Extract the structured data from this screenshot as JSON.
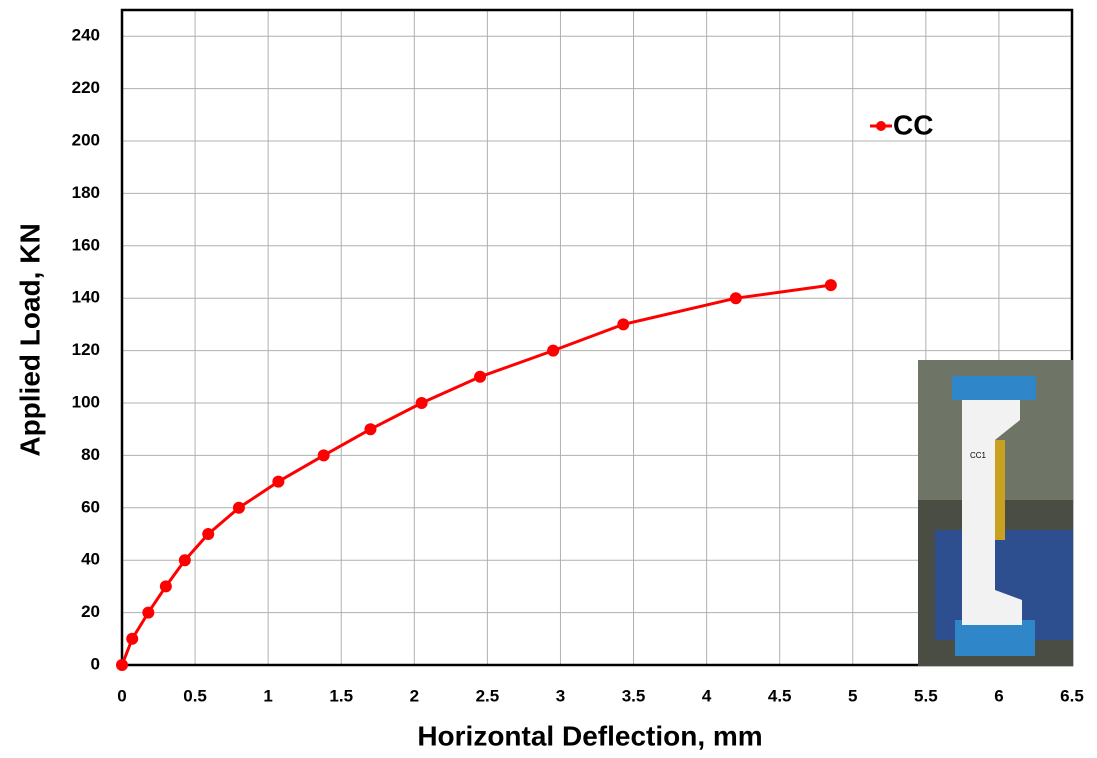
{
  "chart_data": {
    "type": "line",
    "x_label": "Horizontal Deflection, mm",
    "y_label": "Applied Load, KN",
    "x": [
      0,
      0.07,
      0.18,
      0.3,
      0.43,
      0.59,
      0.8,
      1.07,
      1.38,
      1.7,
      2.05,
      2.45,
      2.95,
      3.43,
      4.2,
      4.85
    ],
    "series": [
      {
        "name": "CC",
        "color": "#ff0000",
        "values": [
          0,
          10,
          20,
          30,
          40,
          50,
          60,
          70,
          80,
          90,
          100,
          110,
          120,
          130,
          140,
          145
        ]
      }
    ],
    "xlim": [
      0,
      6.5
    ],
    "xticks": [
      0,
      0.5,
      1,
      1.5,
      2,
      2.5,
      3,
      3.5,
      4,
      4.5,
      5,
      5.5,
      6,
      6.5
    ],
    "ylim": [
      0,
      250
    ],
    "yticks": [
      0,
      20,
      40,
      60,
      80,
      100,
      120,
      140,
      160,
      180,
      200,
      220,
      240
    ],
    "grid": true,
    "legend": "upper right",
    "inset_label": "CC1"
  }
}
